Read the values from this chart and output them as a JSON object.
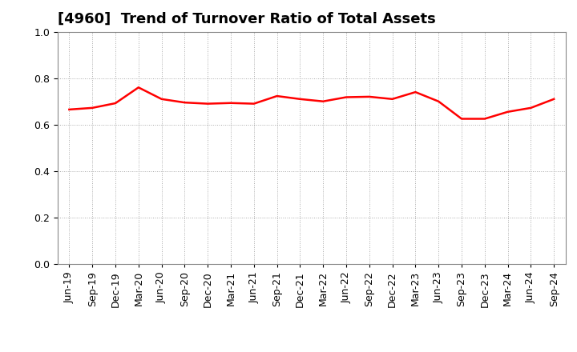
{
  "title": "[4960]  Trend of Turnover Ratio of Total Assets",
  "labels": [
    "Jun-19",
    "Sep-19",
    "Dec-19",
    "Mar-20",
    "Jun-20",
    "Sep-20",
    "Dec-20",
    "Mar-21",
    "Jun-21",
    "Sep-21",
    "Dec-21",
    "Mar-22",
    "Jun-22",
    "Sep-22",
    "Dec-22",
    "Mar-23",
    "Jun-23",
    "Sep-23",
    "Dec-23",
    "Mar-24",
    "Jun-24",
    "Sep-24"
  ],
  "values": [
    0.665,
    0.672,
    0.692,
    0.76,
    0.71,
    0.695,
    0.69,
    0.693,
    0.69,
    0.723,
    0.71,
    0.7,
    0.718,
    0.72,
    0.71,
    0.74,
    0.7,
    0.625,
    0.625,
    0.655,
    0.672,
    0.71
  ],
  "line_color": "#ff0000",
  "line_width": 1.8,
  "ylim": [
    0.0,
    1.0
  ],
  "yticks": [
    0.0,
    0.2,
    0.4,
    0.6,
    0.8,
    1.0
  ],
  "grid_color": "#aaaaaa",
  "bg_color": "#ffffff",
  "title_fontsize": 13,
  "tick_fontsize": 9
}
